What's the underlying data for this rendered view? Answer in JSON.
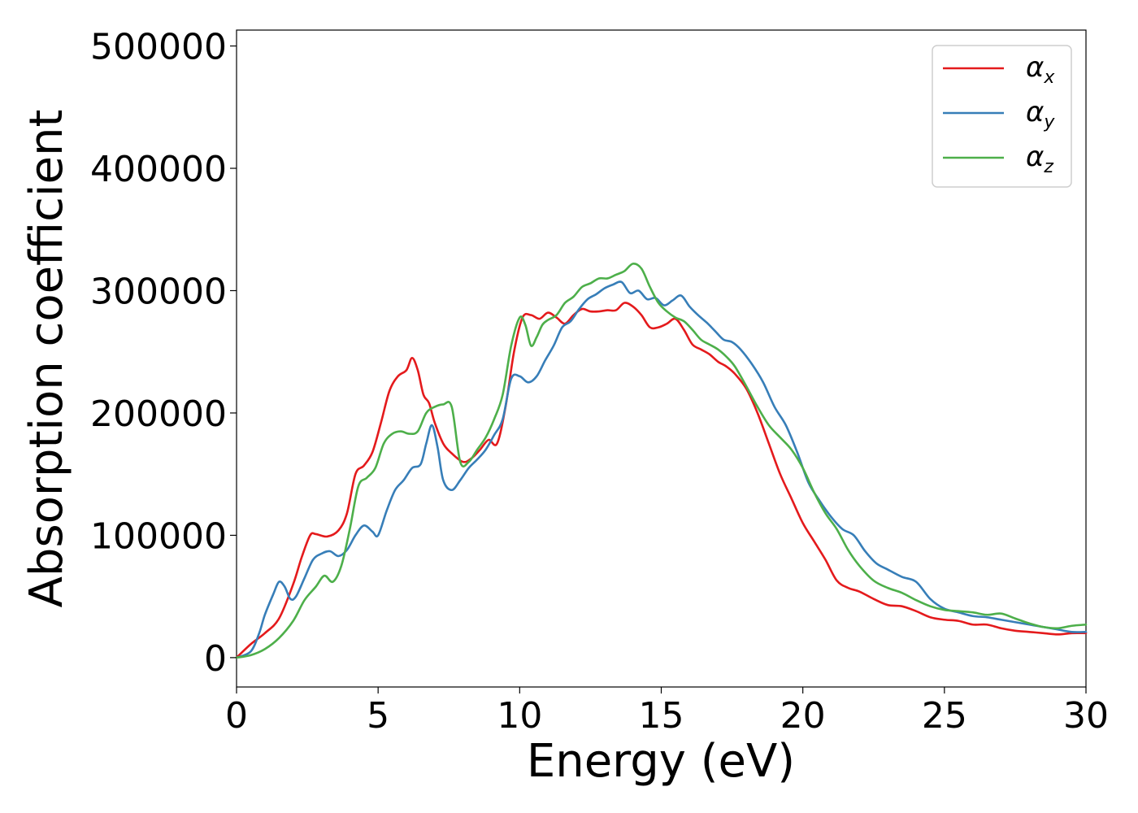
{
  "chart_data": {
    "type": "line",
    "xlabel": "Energy (eV)",
    "ylabel": "Absorption coefficient",
    "xlim": [
      0,
      30
    ],
    "ylim": [
      -24000,
      513000
    ],
    "xticks": [
      0,
      5,
      10,
      15,
      20,
      25,
      30
    ],
    "xtick_labels": [
      "0",
      "5",
      "10",
      "15",
      "20",
      "25",
      "30"
    ],
    "yticks": [
      0,
      100000,
      200000,
      300000,
      400000,
      500000
    ],
    "ytick_labels": [
      "0",
      "100000",
      "200000",
      "300000",
      "400000",
      "500000"
    ],
    "grid": false,
    "legend_position": "top-right",
    "series": [
      {
        "name": "αx",
        "symbol": "α",
        "subscript": "x",
        "color": "#e41a1c",
        "x": [
          0,
          0.5,
          1,
          1.5,
          2,
          2.3,
          2.6,
          2.8,
          3.2,
          3.6,
          3.9,
          4.2,
          4.5,
          4.8,
          5.1,
          5.4,
          5.7,
          6.0,
          6.2,
          6.4,
          6.6,
          6.8,
          7.0,
          7.3,
          7.6,
          8.0,
          8.3,
          8.6,
          8.9,
          9.2,
          9.5,
          9.8,
          10.1,
          10.4,
          10.7,
          11.0,
          11.3,
          11.6,
          11.9,
          12.2,
          12.5,
          12.8,
          13.1,
          13.4,
          13.7,
          14.0,
          14.3,
          14.6,
          14.9,
          15.2,
          15.5,
          15.8,
          16.1,
          16.4,
          16.7,
          17.0,
          17.3,
          17.6,
          18.0,
          18.4,
          18.8,
          19.2,
          19.6,
          20.0,
          20.4,
          20.8,
          21.2,
          21.6,
          22.0,
          22.5,
          23.0,
          23.5,
          24.0,
          24.5,
          25.0,
          25.5,
          26.0,
          26.5,
          27.0,
          27.5,
          28.0,
          28.5,
          29.0,
          29.5,
          30.0
        ],
        "y": [
          0,
          11000,
          20000,
          32000,
          60000,
          82000,
          100000,
          101000,
          99000,
          104000,
          118000,
          150000,
          157000,
          168000,
          192000,
          218000,
          230000,
          235000,
          245000,
          235000,
          215000,
          208000,
          192000,
          175000,
          167000,
          160000,
          163000,
          170000,
          178000,
          175000,
          205000,
          250000,
          278000,
          280000,
          277000,
          282000,
          278000,
          273000,
          280000,
          285000,
          283000,
          283000,
          284000,
          284000,
          290000,
          287000,
          280000,
          270000,
          270000,
          273000,
          277000,
          268000,
          256000,
          252000,
          248000,
          242000,
          238000,
          232000,
          220000,
          200000,
          175000,
          150000,
          130000,
          110000,
          95000,
          80000,
          63000,
          57000,
          54000,
          48000,
          43000,
          42000,
          38000,
          33000,
          31000,
          30000,
          27000,
          27000,
          24000,
          22000,
          21000,
          20000,
          19000,
          20000,
          20000
        ]
      },
      {
        "name": "αy",
        "symbol": "α",
        "subscript": "y",
        "color": "#377eb8",
        "x": [
          0,
          0.5,
          0.8,
          1.0,
          1.3,
          1.5,
          1.7,
          1.9,
          2.1,
          2.4,
          2.7,
          3.0,
          3.3,
          3.6,
          3.9,
          4.2,
          4.5,
          4.8,
          5.0,
          5.3,
          5.6,
          5.9,
          6.2,
          6.5,
          6.7,
          6.9,
          7.1,
          7.3,
          7.6,
          7.9,
          8.2,
          8.5,
          8.8,
          9.1,
          9.4,
          9.7,
          10.0,
          10.3,
          10.6,
          10.9,
          11.2,
          11.5,
          11.8,
          12.1,
          12.4,
          12.7,
          13.0,
          13.3,
          13.6,
          13.9,
          14.2,
          14.5,
          14.8,
          15.1,
          15.4,
          15.7,
          16.0,
          16.3,
          16.6,
          16.9,
          17.2,
          17.5,
          17.8,
          18.2,
          18.6,
          19.0,
          19.4,
          19.8,
          20.2,
          20.6,
          21.0,
          21.4,
          21.8,
          22.2,
          22.6,
          23.0,
          23.5,
          24.0,
          24.5,
          25.0,
          25.5,
          26.0,
          26.5,
          27.0,
          27.5,
          28.0,
          28.5,
          29.0,
          29.5,
          30.0
        ],
        "y": [
          0,
          5000,
          20000,
          35000,
          52000,
          62000,
          58000,
          48000,
          50000,
          65000,
          80000,
          85000,
          87000,
          83000,
          88000,
          100000,
          108000,
          103000,
          100000,
          120000,
          137000,
          145000,
          155000,
          158000,
          175000,
          190000,
          172000,
          145000,
          137000,
          145000,
          155000,
          162000,
          170000,
          182000,
          195000,
          228000,
          230000,
          225000,
          230000,
          243000,
          255000,
          270000,
          275000,
          285000,
          293000,
          297000,
          302000,
          305000,
          307000,
          298000,
          300000,
          293000,
          294000,
          288000,
          292000,
          296000,
          287000,
          280000,
          274000,
          267000,
          260000,
          258000,
          252000,
          240000,
          225000,
          205000,
          190000,
          168000,
          143000,
          128000,
          115000,
          105000,
          100000,
          87000,
          77000,
          72000,
          66000,
          62000,
          48000,
          40000,
          37000,
          34000,
          33000,
          31000,
          29000,
          27000,
          25000,
          23000,
          21000,
          21000
        ]
      },
      {
        "name": "αz",
        "symbol": "α",
        "subscript": "z",
        "color": "#4daf4a",
        "x": [
          0,
          0.5,
          1.0,
          1.5,
          2.0,
          2.4,
          2.8,
          3.1,
          3.4,
          3.7,
          4.0,
          4.3,
          4.6,
          4.9,
          5.2,
          5.5,
          5.8,
          6.1,
          6.4,
          6.7,
          7.0,
          7.3,
          7.6,
          7.9,
          8.2,
          8.5,
          8.8,
          9.1,
          9.4,
          9.7,
          10.0,
          10.2,
          10.4,
          10.6,
          10.8,
          11.0,
          11.3,
          11.6,
          11.9,
          12.2,
          12.5,
          12.8,
          13.1,
          13.4,
          13.7,
          14.0,
          14.3,
          14.6,
          14.9,
          15.2,
          15.5,
          15.8,
          16.1,
          16.4,
          16.7,
          17.0,
          17.3,
          17.6,
          18.0,
          18.4,
          18.8,
          19.2,
          19.6,
          20.0,
          20.4,
          20.8,
          21.2,
          21.6,
          22.0,
          22.5,
          23.0,
          23.5,
          24.0,
          24.5,
          25.0,
          25.5,
          26.0,
          26.5,
          27.0,
          27.5,
          28.0,
          28.5,
          29.0,
          29.5,
          30.0
        ],
        "y": [
          0,
          2000,
          7000,
          16000,
          30000,
          47000,
          58000,
          67000,
          62000,
          75000,
          105000,
          140000,
          147000,
          155000,
          175000,
          183000,
          185000,
          183000,
          185000,
          200000,
          205000,
          207000,
          205000,
          160000,
          160000,
          170000,
          180000,
          195000,
          215000,
          255000,
          278000,
          272000,
          255000,
          262000,
          272000,
          276000,
          280000,
          290000,
          295000,
          303000,
          306000,
          310000,
          310000,
          313000,
          316000,
          322000,
          318000,
          303000,
          290000,
          283000,
          278000,
          275000,
          268000,
          260000,
          256000,
          252000,
          246000,
          238000,
          222000,
          205000,
          190000,
          180000,
          170000,
          155000,
          135000,
          118000,
          105000,
          88000,
          75000,
          63000,
          57000,
          53000,
          47000,
          42000,
          39000,
          38000,
          37000,
          35000,
          36000,
          32000,
          28000,
          25000,
          24000,
          26000,
          27000
        ]
      }
    ]
  }
}
